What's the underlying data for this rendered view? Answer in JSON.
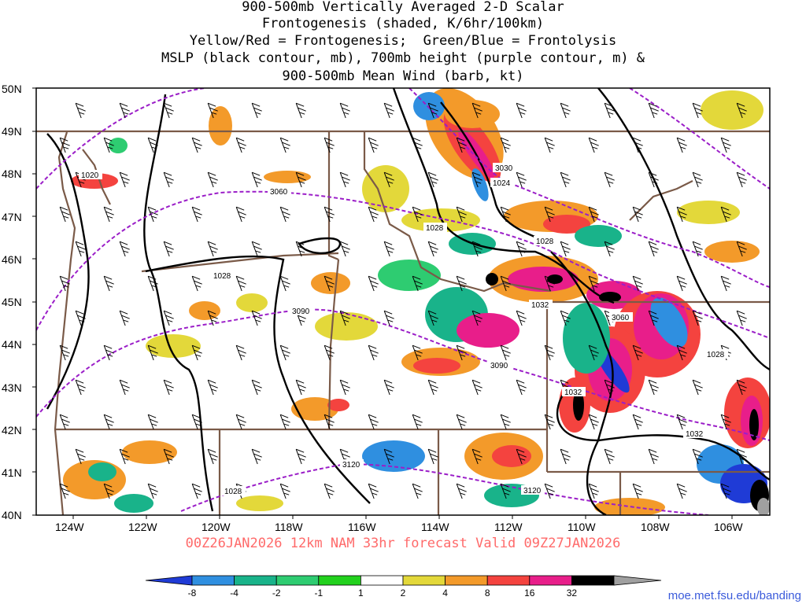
{
  "title": {
    "line1": "900-500mb Vertically Averaged 2-D Scalar",
    "line2": "Frontogenesis (shaded, K/6hr/100km)",
    "line3": "Yellow/Red = Frontogenesis;  Green/Blue = Frontolysis",
    "line4": "MSLP (black contour, mb), 700mb height (purple contour, m) &",
    "line5": "900-500mb Mean Wind (barb, kt)"
  },
  "lat_labels": [
    "50N",
    "49N",
    "48N",
    "47N",
    "46N",
    "45N",
    "44N",
    "43N",
    "42N",
    "41N",
    "40N"
  ],
  "lon_labels": [
    "124W",
    "122W",
    "120W",
    "118W",
    "116W",
    "114W",
    "112W",
    "110W",
    "108W",
    "106W"
  ],
  "mslp_labels": [
    "1020",
    "1024",
    "1028",
    "1028",
    "1028",
    "1032",
    "1028",
    "1032",
    "1032",
    "1028"
  ],
  "height_labels": [
    "3030",
    "3060",
    "3090",
    "3060",
    "3090",
    "3120",
    "3120"
  ],
  "run_info": "00Z26JAN2026 12km NAM 33hr forecast Valid 09Z27JAN2026",
  "credit": "moe.met.fsu.edu/banding",
  "colorbar": {
    "labels": [
      "-8",
      "-4",
      "-2",
      "-1",
      "1",
      "2",
      "4",
      "8",
      "16",
      "32"
    ],
    "colors": [
      "#1f3bd6",
      "#2f8fe0",
      "#19b38a",
      "#2ecc71",
      "#22d11d",
      "#ffffff",
      "#e3d83a",
      "#f39a2a",
      "#f4433f",
      "#e81e8a",
      "#000000",
      "#a0a0a0"
    ]
  },
  "colors": {
    "mslp": "#000000",
    "height": "#9b1ec8",
    "borders": "#7a5a48",
    "run_info": "#ff6a6a",
    "credit": "#3b5bdb"
  }
}
